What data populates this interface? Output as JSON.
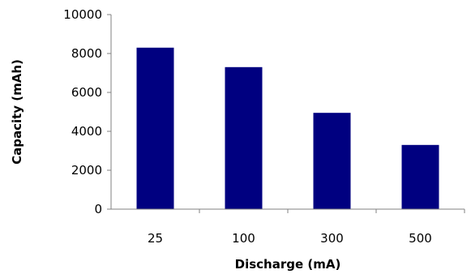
{
  "chart_data": {
    "type": "bar",
    "title": "",
    "xlabel": "Discharge (mA)",
    "ylabel": "Capacity (mAh)",
    "categories": [
      "25",
      "100",
      "300",
      "500"
    ],
    "values": [
      8300,
      7300,
      4950,
      3300
    ],
    "ylim": [
      0,
      10000
    ],
    "yticks": [
      0,
      2000,
      4000,
      6000,
      8000,
      10000
    ],
    "ytick_labels": [
      "0",
      "2000",
      "4000",
      "6000",
      "8000",
      "10000"
    ],
    "grid": false,
    "legend": "none",
    "bar_color": "#000080"
  }
}
